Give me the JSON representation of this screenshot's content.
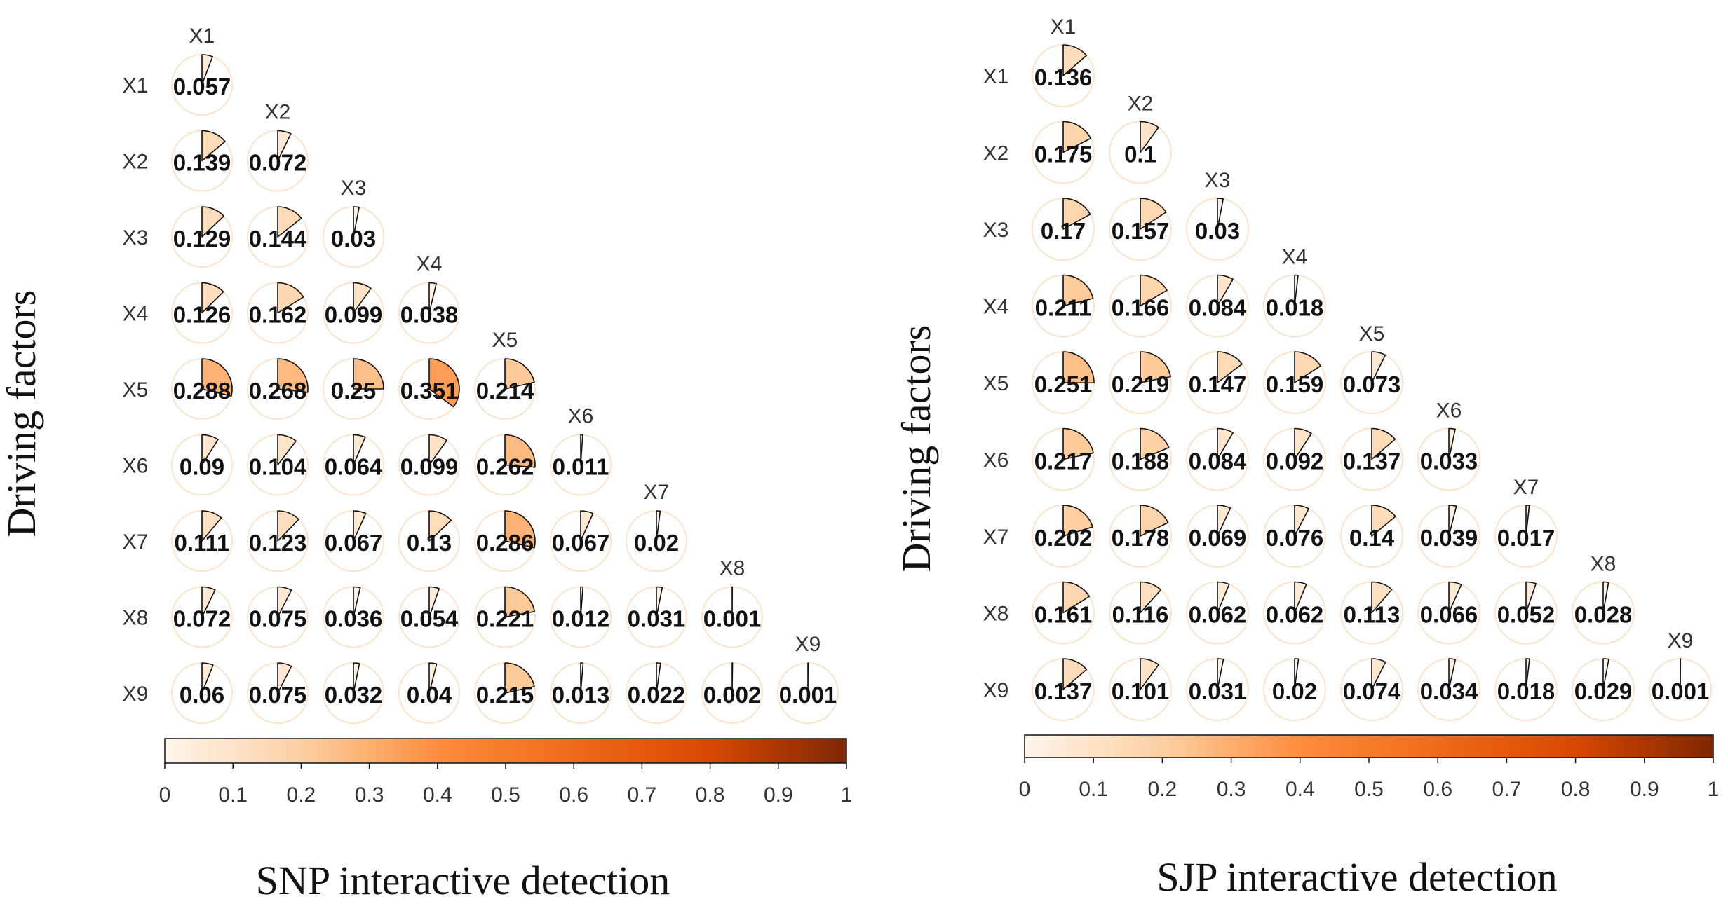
{
  "figure": {
    "panels": [
      {
        "id": "snp",
        "title": "SNP interactive detection",
        "ylabel": "Driving factors",
        "factors": [
          "X1",
          "X2",
          "X3",
          "X4",
          "X5",
          "X6",
          "X7",
          "X8",
          "X9"
        ]
      },
      {
        "id": "sjp",
        "title": "SJP interactive detection",
        "ylabel": "Driving factors",
        "factors": [
          "X1",
          "X2",
          "X3",
          "X4",
          "X5",
          "X6",
          "X7",
          "X8",
          "X9"
        ]
      }
    ]
  },
  "chart_data": [
    {
      "type": "heatmap",
      "subtype": "lower-triangular pie-correlation matrix",
      "title": "SNP interactive detection",
      "xlabel": "",
      "ylabel": "Driving factors",
      "rows": [
        "X1",
        "X2",
        "X3",
        "X4",
        "X5",
        "X6",
        "X7",
        "X8",
        "X9"
      ],
      "columns": [
        "X1",
        "X2",
        "X3",
        "X4",
        "X5",
        "X6",
        "X7",
        "X8",
        "X9"
      ],
      "values": [
        [
          "0.057"
        ],
        [
          "0.139",
          "0.072"
        ],
        [
          "0.129",
          "0.144",
          "0.03"
        ],
        [
          "0.126",
          "0.162",
          "0.099",
          "0.038"
        ],
        [
          "0.288",
          "0.268",
          "0.25",
          "0.351",
          "0.214"
        ],
        [
          "0.09",
          "0.104",
          "0.064",
          "0.099",
          "0.262",
          "0.011"
        ],
        [
          "0.111",
          "0.123",
          "0.067",
          "0.13",
          "0.286",
          "0.067",
          "0.02"
        ],
        [
          "0.072",
          "0.075",
          "0.036",
          "0.054",
          "0.221",
          "0.012",
          "0.031",
          "0.001"
        ],
        [
          "0.06",
          "0.075",
          "0.032",
          "0.04",
          "0.215",
          "0.013",
          "0.022",
          "0.002",
          "0.001"
        ]
      ],
      "colorbar": {
        "range": [
          0,
          1
        ],
        "ticks": [
          "0",
          "0.1",
          "0.2",
          "0.3",
          "0.4",
          "0.5",
          "0.6",
          "0.7",
          "0.8",
          "0.9",
          "1"
        ],
        "colors": [
          "#fff5eb",
          "#fdd0a2",
          "#fd8d3c",
          "#f06a1a",
          "#d94801",
          "#7f2704"
        ]
      }
    },
    {
      "type": "heatmap",
      "subtype": "lower-triangular pie-correlation matrix",
      "title": "SJP interactive detection",
      "xlabel": "",
      "ylabel": "Driving factors",
      "rows": [
        "X1",
        "X2",
        "X3",
        "X4",
        "X5",
        "X6",
        "X7",
        "X8",
        "X9"
      ],
      "columns": [
        "X1",
        "X2",
        "X3",
        "X4",
        "X5",
        "X6",
        "X7",
        "X8",
        "X9"
      ],
      "values": [
        [
          "0.136"
        ],
        [
          "0.175",
          "0.1"
        ],
        [
          "0.17",
          "0.157",
          "0.03"
        ],
        [
          "0.211",
          "0.166",
          "0.084",
          "0.018"
        ],
        [
          "0.251",
          "0.219",
          "0.147",
          "0.159",
          "0.073"
        ],
        [
          "0.217",
          "0.188",
          "0.084",
          "0.092",
          "0.137",
          "0.033"
        ],
        [
          "0.202",
          "0.178",
          "0.069",
          "0.076",
          "0.14",
          "0.039",
          "0.017"
        ],
        [
          "0.161",
          "0.116",
          "0.062",
          "0.062",
          "0.113",
          "0.066",
          "0.052",
          "0.028"
        ],
        [
          "0.137",
          "0.101",
          "0.031",
          "0.02",
          "0.074",
          "0.034",
          "0.018",
          "0.029",
          "0.001"
        ]
      ],
      "colorbar": {
        "range": [
          0,
          1
        ],
        "ticks": [
          "0",
          "0.1",
          "0.2",
          "0.3",
          "0.4",
          "0.5",
          "0.6",
          "0.7",
          "0.8",
          "0.9",
          "1"
        ],
        "colors": [
          "#fff5eb",
          "#fdd0a2",
          "#fd8d3c",
          "#f06a1a",
          "#d94801",
          "#7f2704"
        ]
      }
    }
  ]
}
